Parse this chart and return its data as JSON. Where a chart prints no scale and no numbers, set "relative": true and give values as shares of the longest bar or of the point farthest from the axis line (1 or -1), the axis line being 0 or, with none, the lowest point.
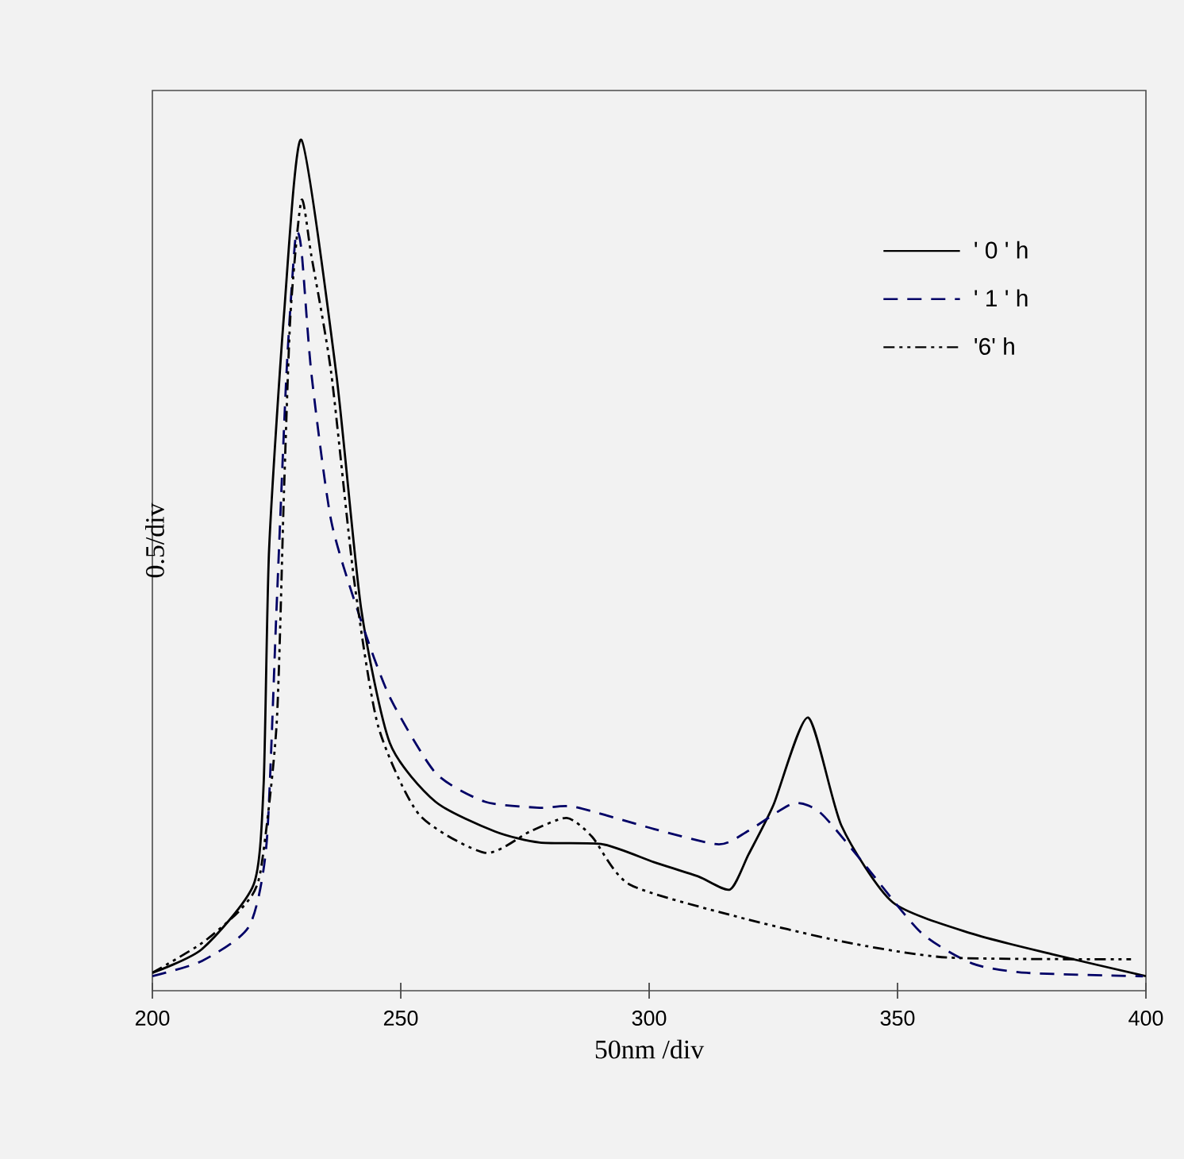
{
  "chart_data": {
    "type": "line",
    "relative": true,
    "xlabel": "50nm /div",
    "ylabel": "0.5/div",
    "xlim": [
      200,
      400
    ],
    "xticks": [
      200,
      250,
      300,
      350,
      400
    ],
    "legend": "top right",
    "marker": "none",
    "series": [
      {
        "name": "' 0 ' h",
        "color": "#000000",
        "line_style": "solid",
        "x": [
          200,
          210,
          220.4,
          222.4,
          223.5,
          226.5,
          230,
          237,
          242,
          247.8,
          257,
          269,
          278,
          290.7,
          301,
          310,
          316.3,
          320,
          325,
          332,
          338.7,
          349,
          365,
          381,
          400
        ],
        "values": [
          0.021,
          0.049,
          0.125,
          0.243,
          0.519,
          0.795,
          1.0,
          0.726,
          0.45,
          0.291,
          0.222,
          0.187,
          0.174,
          0.172,
          0.151,
          0.134,
          0.119,
          0.16,
          0.218,
          0.321,
          0.194,
          0.104,
          0.067,
          0.043,
          0.017
        ]
      },
      {
        "name": "' 1 ' h",
        "color": "#000066",
        "line_style": "dashed",
        "x": [
          200,
          210,
          219.5,
          223,
          225,
          227,
          228.8,
          230,
          232,
          236,
          242,
          247.8,
          257,
          267,
          278,
          285,
          301,
          314,
          320,
          329,
          334.5,
          343,
          354.6,
          365,
          376,
          399.4
        ],
        "values": [
          0.017,
          0.035,
          0.076,
          0.174,
          0.45,
          0.726,
          0.884,
          0.871,
          0.726,
          0.552,
          0.435,
          0.345,
          0.256,
          0.222,
          0.215,
          0.216,
          0.19,
          0.172,
          0.188,
          0.22,
          0.209,
          0.151,
          0.069,
          0.032,
          0.021,
          0.017
        ]
      },
      {
        "name": "'6' h",
        "color": "#000000",
        "line_style": "dashdot",
        "x": [
          200,
          210,
          218,
          221.7,
          225,
          226.5,
          227.8,
          230,
          232,
          236,
          240.6,
          245.4,
          253.7,
          267,
          276,
          283.4,
          288.5,
          296,
          317,
          338.7,
          360,
          397
        ],
        "values": [
          0.021,
          0.056,
          0.097,
          0.138,
          0.312,
          0.588,
          0.795,
          0.929,
          0.864,
          0.726,
          0.483,
          0.312,
          0.207,
          0.162,
          0.187,
          0.203,
          0.181,
          0.125,
          0.088,
          0.058,
          0.039,
          0.037
        ]
      }
    ]
  }
}
